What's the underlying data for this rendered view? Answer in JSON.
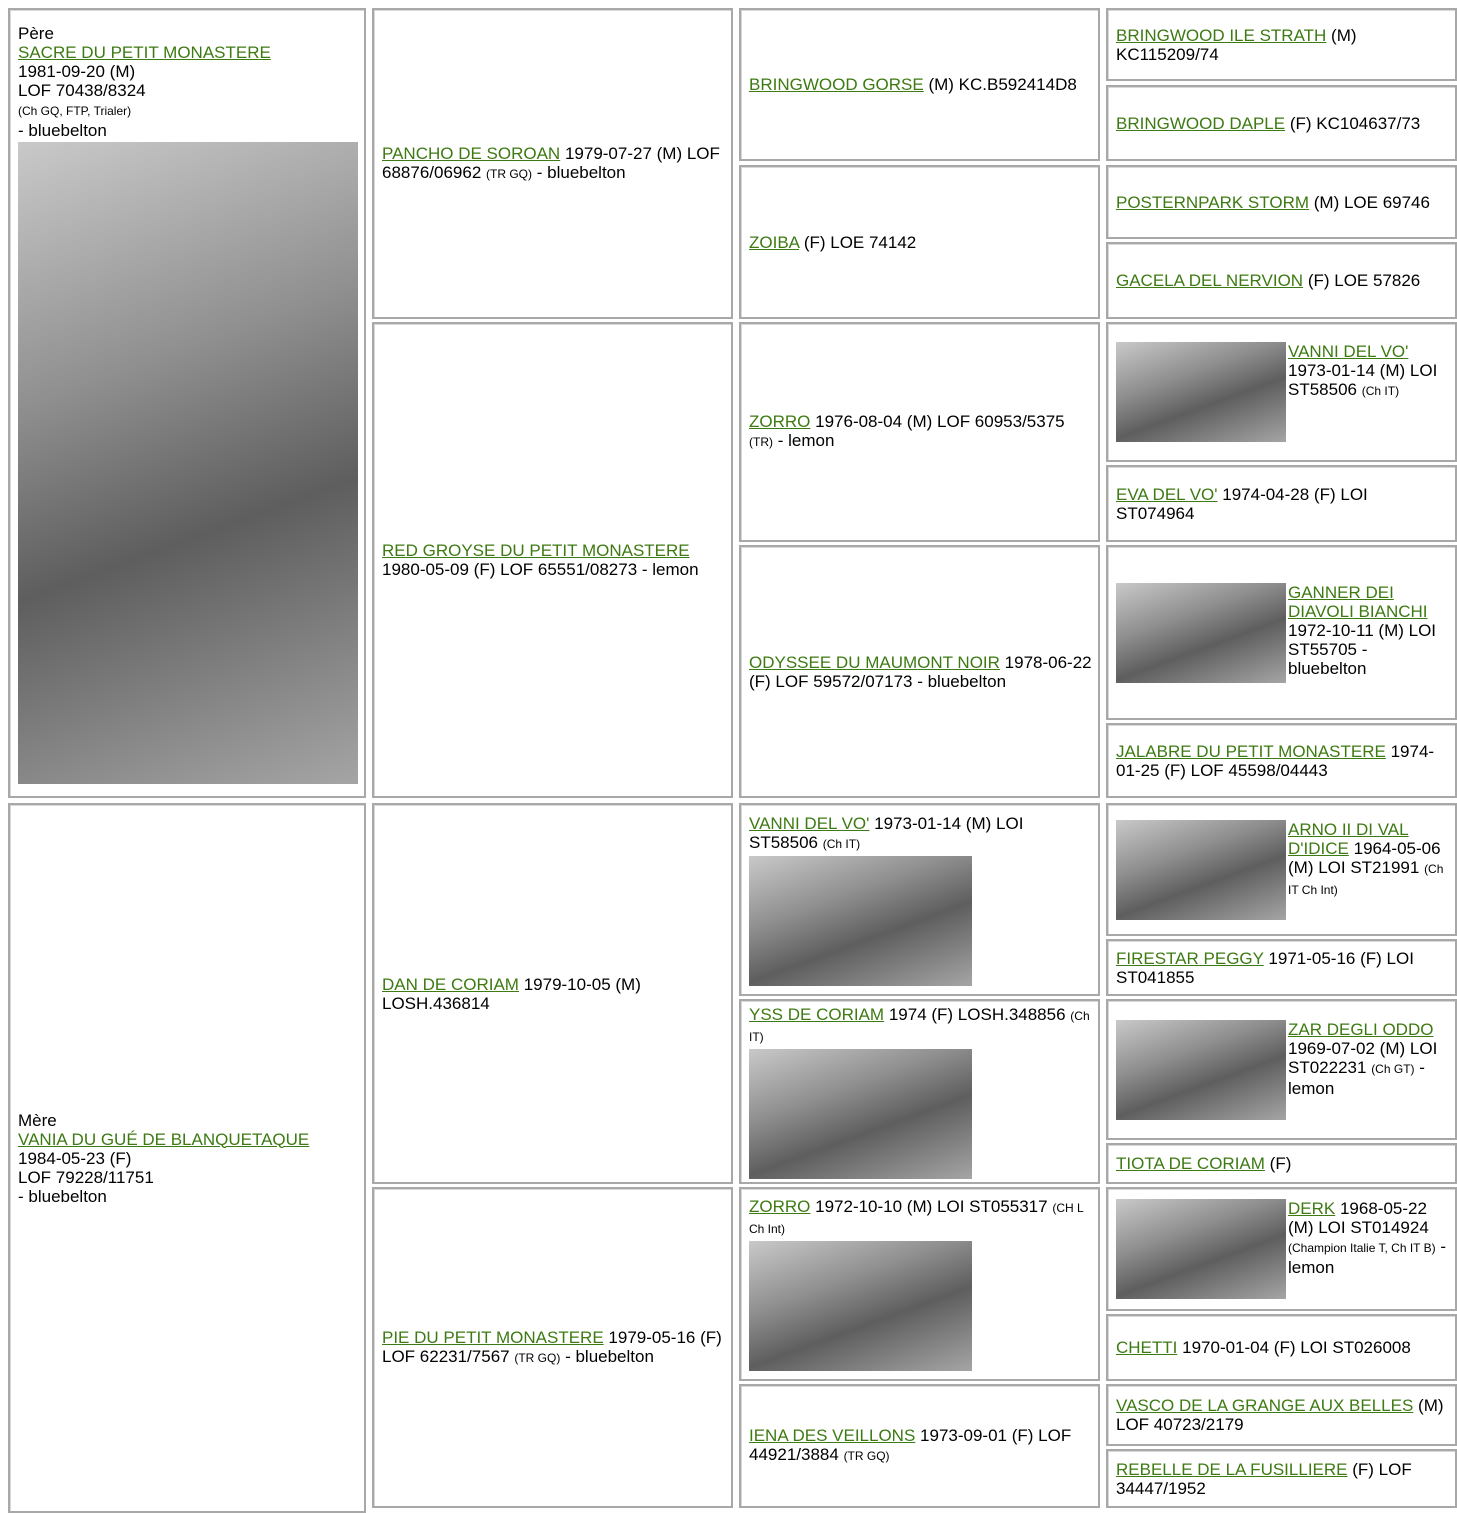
{
  "sire": {
    "label": "Père",
    "name": "SACRE DU PETIT MONASTERE",
    "birth": "1981-09-20 (M)",
    "registration": "LOF 70438/8324",
    "titles": "(Ch GQ, FTP, Trialer)",
    "tail": "- bluebelton"
  },
  "dam": {
    "label": "Mère",
    "name": "VANIA DU GUÉ DE BLANQUETAQUE",
    "birth": "1984-05-23 (F)",
    "registration": "LOF 79228/11751",
    "tail": "- bluebelton"
  },
  "generation2": [
    {
      "name": "PANCHO DE SOROAN",
      "info": "1979-07-27 (M) LOF 68876/06962",
      "titles": "(TR GQ)",
      "tail": "- bluebelton"
    },
    {
      "name": "RED GROYSE DU PETIT MONASTERE",
      "info": "1980-05-09 (F) LOF 65551/08273 - lemon"
    },
    {
      "name": "DAN DE CORIAM",
      "info": "1979-10-05 (M) LOSH.436814"
    },
    {
      "name": "PIE DU PETIT MONASTERE",
      "info": "1979-05-16 (F) LOF 62231/7567",
      "titles": "(TR GQ)",
      "tail": "- bluebelton"
    }
  ],
  "generation3": [
    {
      "name": "BRINGWOOD GORSE",
      "info": "(M) KC.B592414D8"
    },
    {
      "name": "ZOIBA",
      "info": "(F) LOE 74142"
    },
    {
      "name": "ZORRO",
      "info": "1976-08-04 (M) LOF 60953/5375",
      "titles": "(TR)",
      "tail": "- lemon"
    },
    {
      "name": "ODYSSEE DU MAUMONT NOIR",
      "info": "1978-06-22 (F) LOF 59572/07173 - bluebelton"
    },
    {
      "name": "VANNI DEL VO'",
      "info": "1973-01-14 (M) LOI ST58506",
      "titles": "(Ch IT)"
    },
    {
      "name": "YSS DE CORIAM",
      "info": "1974 (F) LOSH.348856",
      "titles": "(Ch IT)"
    },
    {
      "name": "ZORRO",
      "info": "1972-10-10 (M) LOI ST055317",
      "titles": "(CH L Ch Int)"
    },
    {
      "name": "IENA DES VEILLONS",
      "info": "1973-09-01 (F) LOF 44921/3884",
      "titles": "(TR GQ)"
    }
  ],
  "generation4": [
    {
      "name": "BRINGWOOD ILE STRATH",
      "info": "(M) KC115209/74"
    },
    {
      "name": "BRINGWOOD DAPLE",
      "info": "(F) KC104637/73"
    },
    {
      "name": "POSTERNPARK STORM",
      "info": "(M) LOE 69746"
    },
    {
      "name": "GACELA DEL NERVION",
      "info": "(F) LOE 57826"
    },
    {
      "name": "VANNI DEL VO'",
      "info": "1973-01-14 (M) LOI ST58506",
      "titles": "(Ch IT)"
    },
    {
      "name": "EVA DEL VO'",
      "info": "1974-04-28 (F) LOI ST074964"
    },
    {
      "name": "GANNER DEI DIAVOLI BIANCHI",
      "info": "1972-10-11 (M) LOI ST55705 - bluebelton"
    },
    {
      "name": "JALABRE DU PETIT MONASTERE",
      "info": "1974-01-25 (F) LOF 45598/04443"
    },
    {
      "name": "ARNO II DI VAL D'IDICE",
      "info": "1964-05-06 (M) LOI ST21991",
      "titles": "(Ch IT Ch Int)"
    },
    {
      "name": "FIRESTAR PEGGY",
      "info": "1971-05-16 (F) LOI ST041855"
    },
    {
      "name": "ZAR DEGLI ODDO",
      "info": "1969-07-02 (M) LOI ST022231",
      "titles": "(Ch GT)",
      "tail": "- lemon"
    },
    {
      "name": "TIOTA DE CORIAM",
      "info": "(F)"
    },
    {
      "name": "DERK",
      "info": "1968-05-22 (M) LOI ST014924",
      "titles": "(Champion Italie T, Ch IT B)",
      "tail": "- lemon"
    },
    {
      "name": "CHETTI",
      "info": "1970-01-04 (F) LOI ST026008"
    },
    {
      "name": "VASCO DE LA GRANGE AUX BELLES",
      "info": "(M) LOF 40723/2179"
    },
    {
      "name": "REBELLE DE LA FUSILLIERE",
      "info": "(F) LOF 34447/1952"
    }
  ]
}
